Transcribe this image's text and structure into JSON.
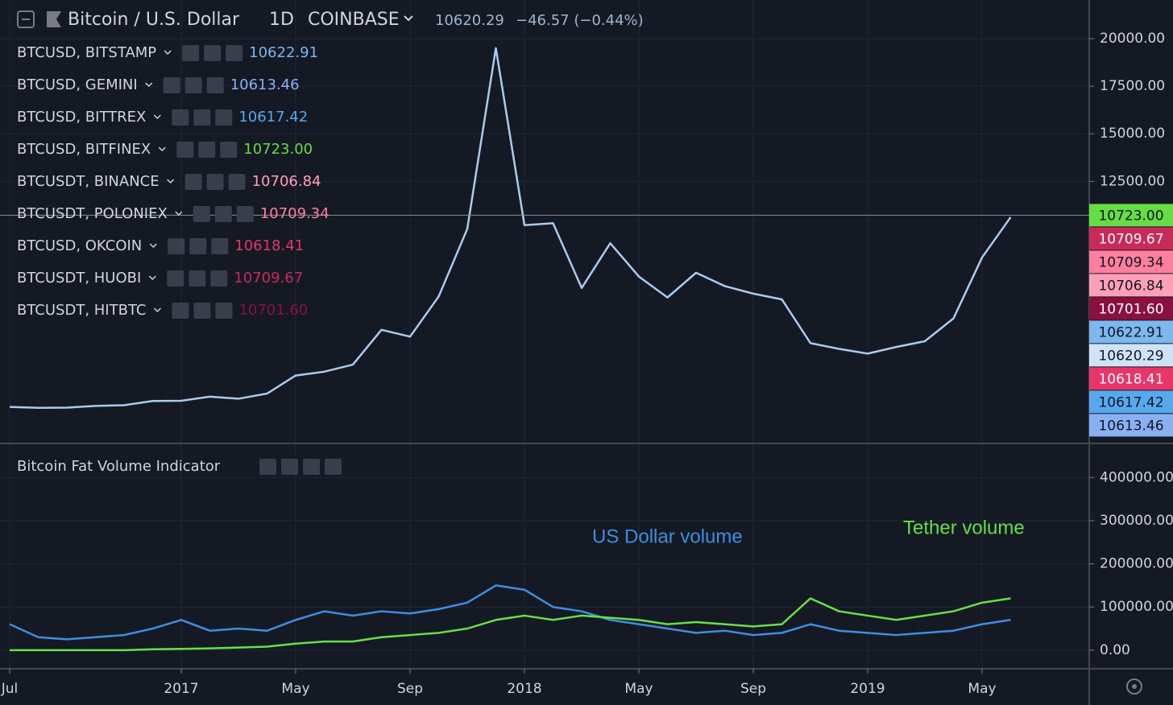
{
  "chart_data": [
    {
      "type": "line",
      "title": "Bitcoin / U.S. Dollar",
      "interval": "1D",
      "exchange": "COINBASE",
      "last": 10620.29,
      "last_color": "#cfe3f8",
      "change": "−46.57 (−0.44%)",
      "color": "#a9cbef",
      "x": [
        "2016-07",
        "2016-08",
        "2016-09",
        "2016-10",
        "2016-11",
        "2016-12",
        "2017-01",
        "2017-02",
        "2017-03",
        "2017-04",
        "2017-05",
        "2017-06",
        "2017-07",
        "2017-08",
        "2017-09",
        "2017-10",
        "2017-11",
        "2017-12",
        "2018-01",
        "2018-02",
        "2018-03",
        "2018-04",
        "2018-05",
        "2018-06",
        "2018-07",
        "2018-08",
        "2018-09",
        "2018-10",
        "2018-11",
        "2018-12",
        "2019-01",
        "2019-02",
        "2019-03",
        "2019-04",
        "2019-05",
        "2019-06"
      ],
      "values": [
        650,
        600,
        610,
        700,
        740,
        960,
        970,
        1190,
        1080,
        1350,
        2300,
        2500,
        2870,
        4700,
        4340,
        6450,
        10000,
        19500,
        10200,
        10300,
        6900,
        9250,
        7500,
        6400,
        7700,
        7000,
        6600,
        6300,
        4000,
        3700,
        3450,
        3800,
        4100,
        5300,
        8500,
        10620.29
      ],
      "overlays": [
        {
          "name": "BTCUSD, BITSTAMP",
          "color": "#7cb7ee",
          "last": 10622.91,
          "last_label": "10622.91"
        },
        {
          "name": "BTCUSD, GEMINI",
          "color": "#8ab0f4",
          "last": 10613.46,
          "last_label": "10613.46"
        },
        {
          "name": "BTCUSD, BITTREX",
          "color": "#58a8ee",
          "last": 10617.42,
          "last_label": "10617.42"
        },
        {
          "name": "BTCUSD, BITFINEX",
          "color": "#66dd44",
          "last": 10723,
          "last_label": "10723.00"
        },
        {
          "name": "BTCUSDT, BINANCE",
          "color": "#ffa0b8",
          "last": 10706.84,
          "last_label": "10706.84"
        },
        {
          "name": "BTCUSDT, POLONIEX",
          "color": "#ff7f9f",
          "last": 10709.34,
          "last_label": "10709.34"
        },
        {
          "name": "BTCUSD, OKCOIN",
          "color": "#e8356a",
          "last": 10618.41,
          "last_label": "10618.41"
        },
        {
          "name": "BTCUSDT, HUOBI",
          "color": "#c82a5a",
          "last": 10709.67,
          "last_label": "10709.67"
        },
        {
          "name": "BTCUSDT, HITBTC",
          "color": "#8a1040",
          "last": 10701.6,
          "last_label": "10701.60"
        }
      ],
      "ylim": [
        -1270,
        22030
      ],
      "yticks": [
        {
          "value": 12500,
          "label": "12500.00"
        },
        {
          "value": 15000,
          "label": "15000.00"
        },
        {
          "value": 17500,
          "label": "17500.00"
        },
        {
          "value": 20000,
          "label": "20000.00"
        }
      ],
      "grid": true
    },
    {
      "type": "line",
      "title": "Bitcoin Fat Volume Indicator",
      "x": [
        "2016-07",
        "2016-08",
        "2016-09",
        "2016-10",
        "2016-11",
        "2016-12",
        "2017-01",
        "2017-02",
        "2017-03",
        "2017-04",
        "2017-05",
        "2017-06",
        "2017-07",
        "2017-08",
        "2017-09",
        "2017-10",
        "2017-11",
        "2017-12",
        "2018-01",
        "2018-02",
        "2018-03",
        "2018-04",
        "2018-05",
        "2018-06",
        "2018-07",
        "2018-08",
        "2018-09",
        "2018-10",
        "2018-11",
        "2018-12",
        "2019-01",
        "2019-02",
        "2019-03",
        "2019-04",
        "2019-05",
        "2019-06"
      ],
      "series": [
        {
          "name": "US Dollar volume",
          "color": "#3d8fe0",
          "values": [
            60000,
            30000,
            25000,
            30000,
            35000,
            50000,
            70000,
            45000,
            50000,
            45000,
            70000,
            90000,
            80000,
            90000,
            85000,
            95000,
            110000,
            150000,
            140000,
            100000,
            90000,
            70000,
            60000,
            50000,
            40000,
            45000,
            35000,
            40000,
            60000,
            45000,
            40000,
            35000,
            40000,
            45000,
            60000,
            70000
          ]
        },
        {
          "name": "Tether volume",
          "color": "#66e04a",
          "values": [
            0,
            0,
            0,
            0,
            0,
            2000,
            3000,
            4000,
            6000,
            8000,
            15000,
            20000,
            20000,
            30000,
            35000,
            40000,
            50000,
            70000,
            80000,
            70000,
            80000,
            75000,
            70000,
            60000,
            65000,
            60000,
            55000,
            60000,
            120000,
            90000,
            80000,
            70000,
            80000,
            90000,
            110000,
            120000
          ]
        }
      ],
      "ylim": [
        -43200,
        478900
      ],
      "yticks": [
        {
          "value": 0,
          "label": "0.00"
        },
        {
          "value": 100000,
          "label": "100000.00"
        },
        {
          "value": 200000,
          "label": "200000.00"
        },
        {
          "value": 300000,
          "label": "300000.00"
        },
        {
          "value": 400000,
          "label": "400000.00"
        }
      ],
      "xticks": [
        {
          "value": "2016-07",
          "label": "Jul"
        },
        {
          "value": "2017-01",
          "label": "2017"
        },
        {
          "value": "2017-05",
          "label": "May"
        },
        {
          "value": "2017-09",
          "label": "Sep"
        },
        {
          "value": "2018-01",
          "label": "2018"
        },
        {
          "value": "2018-05",
          "label": "May"
        },
        {
          "value": "2018-09",
          "label": "Sep"
        },
        {
          "value": "2019-01",
          "label": "2019"
        },
        {
          "value": "2019-05",
          "label": "May"
        }
      ],
      "grid": true
    }
  ]
}
